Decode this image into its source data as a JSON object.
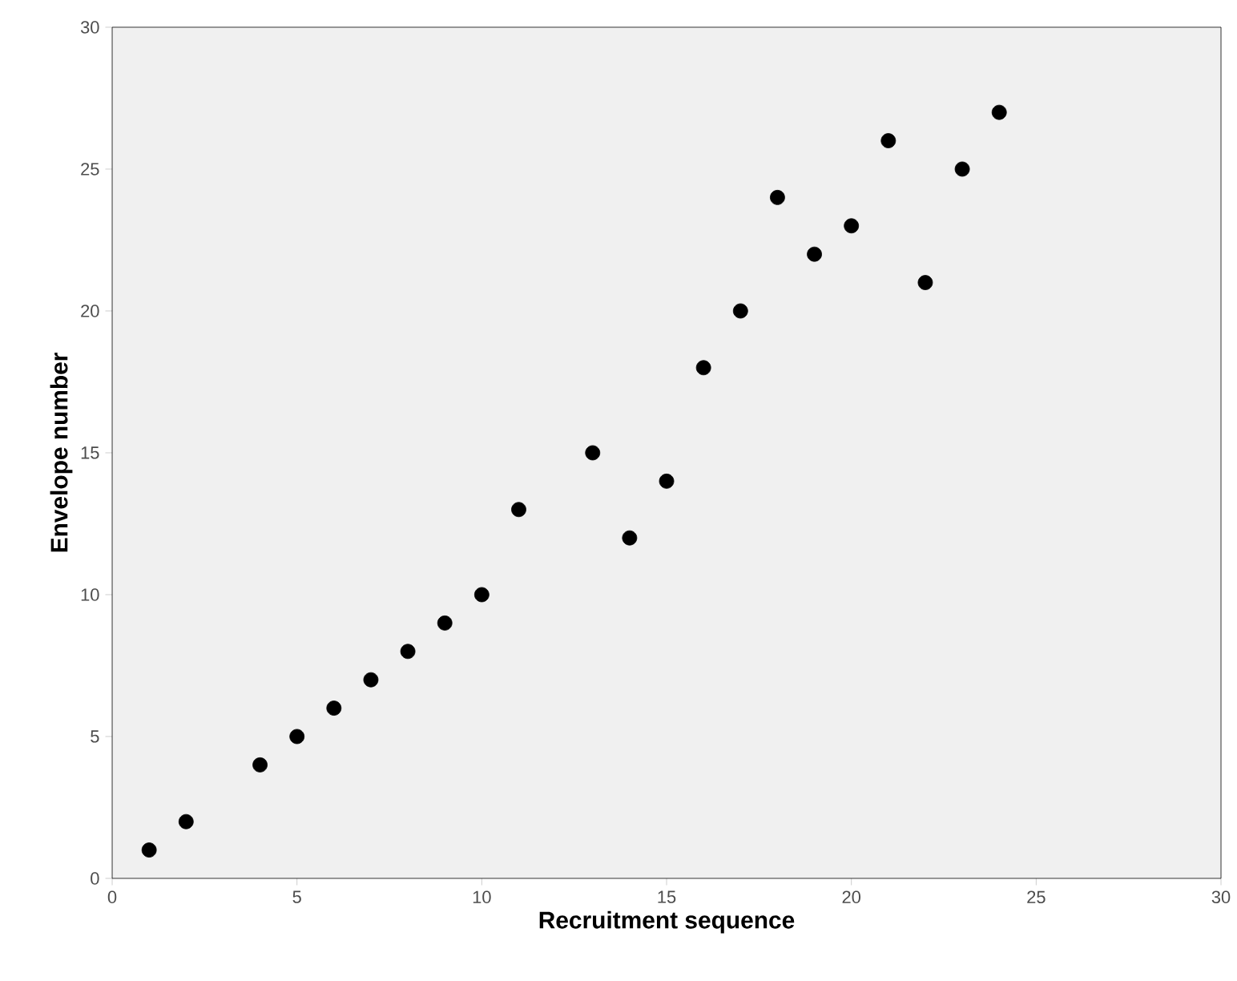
{
  "chart_data": {
    "type": "scatter",
    "xlabel": "Recruitment sequence",
    "ylabel": "Envelope number",
    "x": [
      1,
      2,
      4,
      5,
      6,
      7,
      8,
      9,
      10,
      11,
      13,
      14,
      15,
      16,
      17,
      18,
      19,
      20,
      21,
      22,
      23,
      24
    ],
    "values": [
      1,
      2,
      4,
      5,
      6,
      7,
      8,
      9,
      10,
      13,
      15,
      12,
      14,
      18,
      20,
      24,
      22,
      23,
      26,
      21,
      25,
      27
    ],
    "color": "#000000",
    "marker": "circle",
    "xlim": [
      0,
      30
    ],
    "ylim": [
      0,
      30
    ],
    "xticks": [
      0,
      5,
      10,
      15,
      20,
      25,
      30
    ],
    "yticks": [
      0,
      5,
      10,
      15,
      20,
      25,
      30
    ]
  }
}
